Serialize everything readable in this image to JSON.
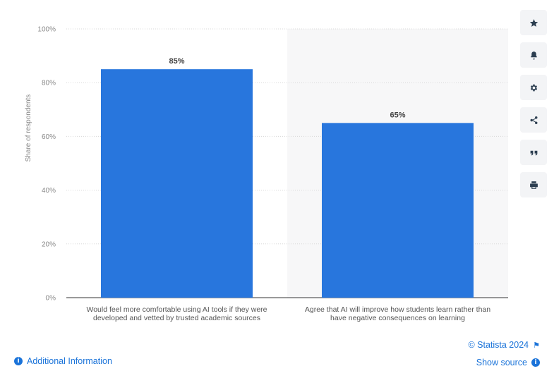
{
  "chart_data": {
    "type": "bar",
    "categories": [
      "Would feel more comfortable using AI tools if they were developed and vetted by trusted academic sources",
      "Agree that AI will improve how students learn rather than have negative consequences on learning"
    ],
    "category_lines": [
      [
        "Would feel more comfortable using AI tools if they were",
        "developed and vetted by trusted academic sources"
      ],
      [
        "Agree that AI will improve how students learn rather than",
        "have negative consequences on learning"
      ]
    ],
    "values": [
      85,
      65
    ],
    "data_labels": [
      "85%",
      "65%"
    ],
    "ylabel": "Share of respondents",
    "xlabel": "",
    "ylim": [
      0,
      100
    ],
    "yticks": [
      0,
      20,
      40,
      60,
      80,
      100
    ],
    "ytick_labels": [
      "0%",
      "20%",
      "40%",
      "60%",
      "80%",
      "100%"
    ],
    "bar_color": "#2876dd",
    "grid": true,
    "highlighted_category_index": 1,
    "highlight_color": "#f7f7f8"
  },
  "tools": [
    {
      "name": "star-icon"
    },
    {
      "name": "bell-icon"
    },
    {
      "name": "gear-icon"
    },
    {
      "name": "share-icon"
    },
    {
      "name": "quote-icon"
    },
    {
      "name": "print-icon"
    }
  ],
  "footer": {
    "additional_info": "Additional Information",
    "copyright": "© Statista 2024",
    "show_source": "Show source"
  }
}
